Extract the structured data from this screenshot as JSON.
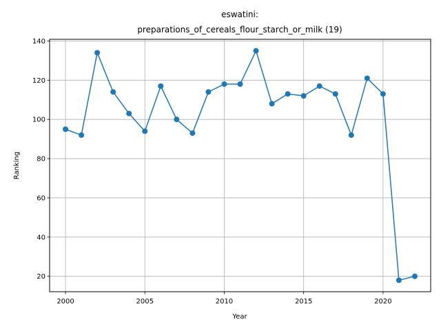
{
  "chart_data": {
    "type": "line",
    "title_line1": "eswatini:",
    "title_line2": "preparations_of_cereals_flour_starch_or_milk (19)",
    "xlabel": "Year",
    "ylabel": "Ranking",
    "xlim": [
      1999,
      2023
    ],
    "ylim": [
      12.15,
      140.85
    ],
    "xticks": [
      2000,
      2005,
      2010,
      2015,
      2020
    ],
    "yticks": [
      20,
      40,
      60,
      80,
      100,
      120,
      140
    ],
    "grid": true,
    "color": "#1f77b4",
    "x": [
      2000,
      2001,
      2002,
      2003,
      2004,
      2005,
      2006,
      2007,
      2008,
      2009,
      2010,
      2011,
      2012,
      2013,
      2014,
      2015,
      2016,
      2017,
      2018,
      2019,
      2020,
      2021,
      2022
    ],
    "y": [
      95,
      92,
      134,
      114,
      103,
      94,
      117,
      100,
      93,
      114,
      118,
      118,
      135,
      108,
      113,
      112,
      117,
      113,
      92,
      121,
      113,
      18,
      20
    ]
  }
}
